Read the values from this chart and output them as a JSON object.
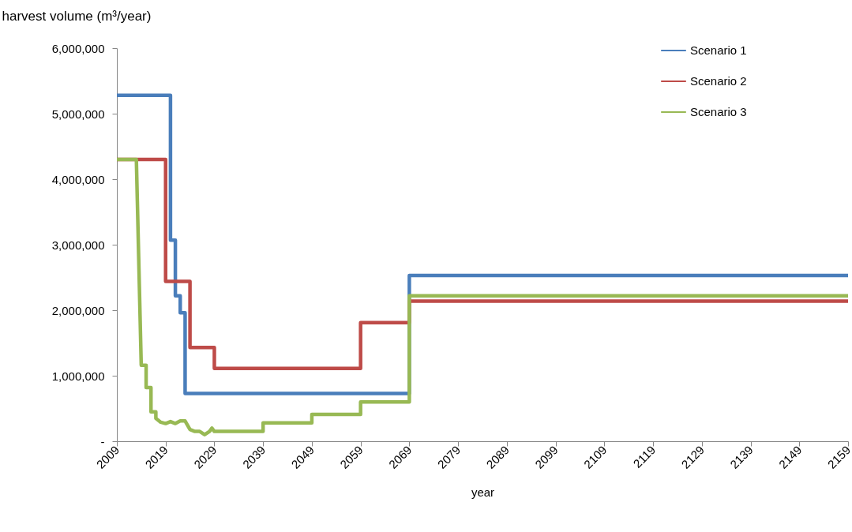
{
  "chart_data": {
    "type": "line",
    "ylabel": "harvest volume (m³/year)",
    "xlabel": "year",
    "xlim": [
      2009,
      2159
    ],
    "xticks": [
      2009,
      2019,
      2029,
      2039,
      2049,
      2059,
      2069,
      2079,
      2089,
      2099,
      2109,
      2119,
      2129,
      2139,
      2149,
      2159
    ],
    "ylim": [
      0,
      6000000
    ],
    "yticks": [
      {
        "value": 0,
        "label": "-"
      },
      {
        "value": 1000000,
        "label": "1,000,000"
      },
      {
        "value": 2000000,
        "label": "2,000,000"
      },
      {
        "value": 3000000,
        "label": "3,000,000"
      },
      {
        "value": 4000000,
        "label": "4,000,000"
      },
      {
        "value": 5000000,
        "label": "5,000,000"
      },
      {
        "value": 6000000,
        "label": "6,000,000"
      }
    ],
    "grid": false,
    "legend": "top right",
    "marker": "none",
    "line_style": "solid",
    "series": [
      {
        "name": "Scenario 1",
        "color": "#4a7ebb",
        "x": [
          2009,
          2020,
          2020,
          2021,
          2021,
          2022,
          2022,
          2023,
          2023,
          2069,
          2069,
          2159
        ],
        "values": [
          5280000,
          5280000,
          3070000,
          3070000,
          2220000,
          2220000,
          1960000,
          1960000,
          730000,
          730000,
          2530000,
          2530000
        ]
      },
      {
        "name": "Scenario 2",
        "color": "#be4b48",
        "x": [
          2009,
          2019,
          2019,
          2024,
          2024,
          2029,
          2029,
          2059,
          2059,
          2069,
          2069,
          2159
        ],
        "values": [
          4300000,
          4300000,
          2440000,
          2440000,
          1430000,
          1430000,
          1110000,
          1110000,
          1810000,
          1810000,
          2140000,
          2140000
        ]
      },
      {
        "name": "Scenario 3",
        "color": "#98b954",
        "x": [
          2009,
          2013,
          2014,
          2015,
          2015,
          2016,
          2016,
          2017,
          2017,
          2018,
          2019,
          2020,
          2021,
          2022,
          2023,
          2024,
          2025,
          2026,
          2027,
          2028,
          2028.5,
          2029,
          2039,
          2039,
          2049,
          2049,
          2059,
          2059,
          2069,
          2069,
          2159
        ],
        "values": [
          4300000,
          4300000,
          1160000,
          1160000,
          820000,
          820000,
          450000,
          450000,
          350000,
          290000,
          270000,
          300000,
          270000,
          310000,
          310000,
          180000,
          150000,
          150000,
          100000,
          150000,
          200000,
          150000,
          150000,
          280000,
          280000,
          410000,
          410000,
          600000,
          600000,
          2220000,
          2220000
        ]
      }
    ]
  }
}
